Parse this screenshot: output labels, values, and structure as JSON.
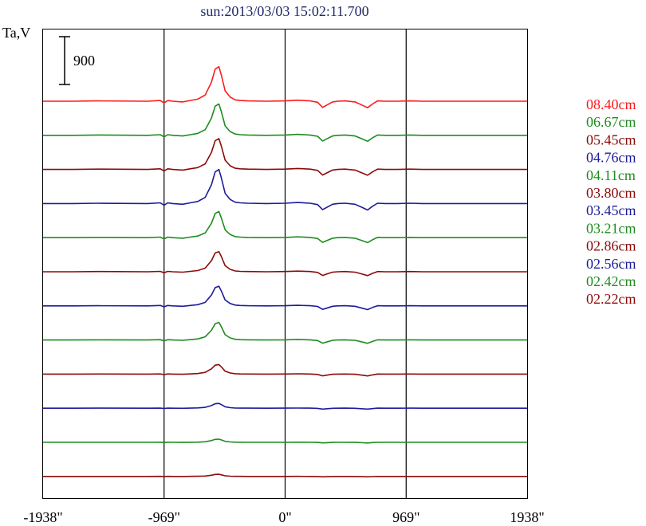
{
  "chart_data": {
    "type": "line",
    "title": "sun:2013/03/03 15:02:11.700",
    "ylabel": "Ta,V",
    "scale_bar_label": "900",
    "scale_bar_value": 900,
    "xlim": [
      -1938,
      1938
    ],
    "x_ticks": [
      {
        "value": -1938,
        "label": "-1938\""
      },
      {
        "value": -969,
        "label": "-969\""
      },
      {
        "value": 0,
        "label": "0\""
      },
      {
        "value": 969,
        "label": "969\""
      },
      {
        "value": 1938,
        "label": "1938\""
      }
    ],
    "vlines": [
      -969,
      0,
      969
    ],
    "series_profile": {
      "x": [
        -1938,
        -1700,
        -1500,
        -1100,
        -1000,
        -969,
        -940,
        -900,
        -820,
        -760,
        -700,
        -640,
        -590,
        -560,
        -530,
        -510,
        -480,
        -440,
        -400,
        -360,
        -300,
        -150,
        0,
        100,
        200,
        260,
        300,
        340,
        380,
        420,
        480,
        560,
        620,
        660,
        700,
        740,
        800,
        900,
        1000,
        1100,
        1300,
        1600,
        1938
      ],
      "shape": [
        0,
        0,
        0.01,
        0,
        0.02,
        -0.05,
        0.02,
        0,
        -0.02,
        0.02,
        0.06,
        0.18,
        0.55,
        0.93,
        1.0,
        0.75,
        0.3,
        0.12,
        0.04,
        0.02,
        0.01,
        0,
        0.01,
        0.03,
        0.01,
        -0.03,
        -0.18,
        -0.1,
        -0.02,
        0,
        0.01,
        -0.02,
        -0.12,
        -0.19,
        -0.08,
        0.01,
        0,
        0,
        0.01,
        0,
        0,
        0,
        0
      ]
    },
    "series": [
      {
        "name": "08.40cm",
        "color": "#ff1a1a",
        "peak": 650
      },
      {
        "name": "06.67cm",
        "color": "#1e8c1e",
        "peak": 590
      },
      {
        "name": "05.45cm",
        "color": "#8b0a0a",
        "peak": 580
      },
      {
        "name": "04.76cm",
        "color": "#1c1c9a",
        "peak": 640
      },
      {
        "name": "04.11cm",
        "color": "#1e8c1e",
        "peak": 490
      },
      {
        "name": "03.80cm",
        "color": "#8b0a0a",
        "peak": 380
      },
      {
        "name": "03.45cm",
        "color": "#1c1c9a",
        "peak": 370
      },
      {
        "name": "03.21cm",
        "color": "#1e8c1e",
        "peak": 330
      },
      {
        "name": "02.86cm",
        "color": "#8b0a0a",
        "peak": 180
      },
      {
        "name": "02.56cm",
        "color": "#1c1c9a",
        "peak": 90
      },
      {
        "name": "02.42cm",
        "color": "#1e8c1e",
        "peak": 60
      },
      {
        "name": "02.22cm",
        "color": "#8b0a0a",
        "peak": 40
      }
    ]
  }
}
